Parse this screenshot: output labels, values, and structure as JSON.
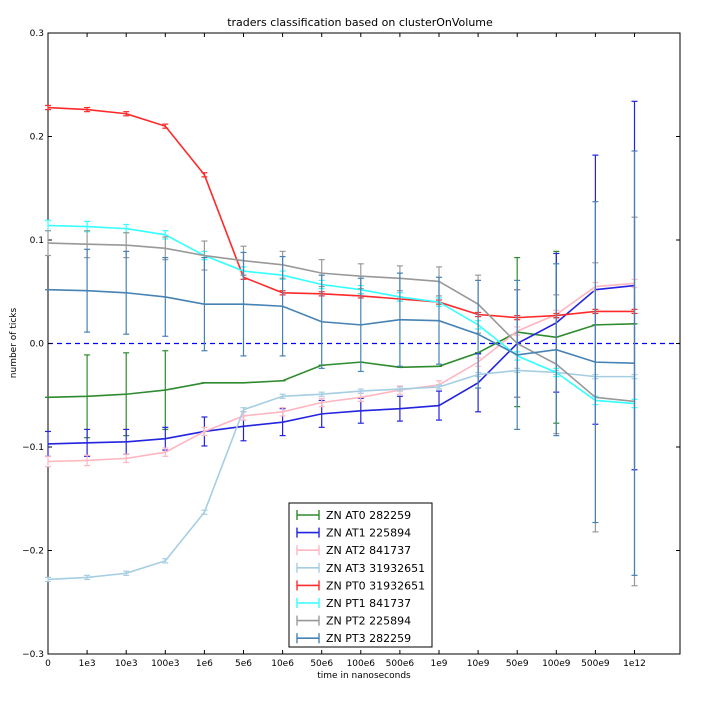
{
  "chart_data": {
    "type": "line",
    "title": "traders classification based on clusterOnVolume",
    "xlabel": "time in nanoseconds",
    "ylabel": "number of ticks",
    "ylim": [
      -0.3,
      0.3
    ],
    "y_ticks": [
      "0.3",
      "0.2",
      "0.1",
      "0.0",
      "−0.1",
      "−0.2",
      "−0.3"
    ],
    "x_tick_labels": [
      "0",
      "1e3",
      "10e3",
      "100e3",
      "1e6",
      "5e6",
      "10e6",
      "50e6",
      "100e6",
      "500e6",
      "1e9",
      "10e9",
      "50e9",
      "100e9",
      "500e9",
      "1e12"
    ],
    "grid": false,
    "reference_line": {
      "y": 0.0,
      "style": "dashed",
      "color": "#0000ff"
    },
    "legend": "lower-center",
    "series": [
      {
        "name": "ZN AT0 282259",
        "color": "#2e8b2e",
        "values": [
          -0.052,
          -0.051,
          -0.049,
          -0.045,
          -0.038,
          -0.038,
          -0.036,
          -0.021,
          -0.018,
          -0.023,
          -0.022,
          -0.009,
          0.011,
          0.006,
          0.018,
          0.019
        ],
        "errors": [
          0.0,
          0.04,
          0.04,
          0.038,
          0.0,
          0.0,
          0.0,
          0.0,
          0.0,
          0.0,
          0.0,
          0.0,
          0.072,
          0.083,
          0.0,
          0.0
        ]
      },
      {
        "name": "ZN AT1 225894",
        "color": "#2323e0",
        "values": [
          -0.097,
          -0.096,
          -0.095,
          -0.092,
          -0.085,
          -0.08,
          -0.076,
          -0.068,
          -0.065,
          -0.063,
          -0.06,
          -0.038,
          0.0,
          0.02,
          0.052,
          0.056
        ],
        "errors": [
          0.012,
          0.013,
          0.012,
          0.011,
          0.014,
          0.014,
          0.013,
          0.013,
          0.012,
          0.012,
          0.014,
          0.028,
          0.052,
          0.067,
          0.13,
          0.178
        ]
      },
      {
        "name": "ZN AT2 841737",
        "color": "#ffb6c1",
        "values": [
          -0.114,
          -0.113,
          -0.111,
          -0.105,
          -0.085,
          -0.07,
          -0.066,
          -0.057,
          -0.052,
          -0.045,
          -0.04,
          -0.018,
          0.012,
          0.028,
          0.055,
          0.058
        ],
        "errors": [
          0.005,
          0.005,
          0.004,
          0.004,
          0.004,
          0.004,
          0.004,
          0.004,
          0.004,
          0.004,
          0.004,
          0.004,
          0.004,
          0.004,
          0.004,
          0.004
        ]
      },
      {
        "name": "ZN AT3 31932651",
        "color": "#a6cee3",
        "values": [
          -0.228,
          -0.226,
          -0.222,
          -0.21,
          -0.163,
          -0.064,
          -0.051,
          -0.049,
          -0.046,
          -0.044,
          -0.042,
          -0.03,
          -0.026,
          -0.028,
          -0.032,
          -0.032
        ],
        "errors": [
          0.002,
          0.002,
          0.002,
          0.002,
          0.002,
          0.002,
          0.002,
          0.002,
          0.002,
          0.002,
          0.002,
          0.002,
          0.002,
          0.002,
          0.002,
          0.002
        ]
      },
      {
        "name": "ZN PT0 31932651",
        "color": "#ff2a2a",
        "values": [
          0.228,
          0.226,
          0.222,
          0.21,
          0.163,
          0.064,
          0.049,
          0.048,
          0.046,
          0.043,
          0.04,
          0.028,
          0.025,
          0.027,
          0.031,
          0.031
        ],
        "errors": [
          0.002,
          0.002,
          0.002,
          0.002,
          0.002,
          0.002,
          0.002,
          0.002,
          0.002,
          0.002,
          0.002,
          0.002,
          0.002,
          0.002,
          0.002,
          0.002
        ]
      },
      {
        "name": "ZN PT1 841737",
        "color": "#33ffff",
        "values": [
          0.114,
          0.113,
          0.111,
          0.105,
          0.085,
          0.07,
          0.066,
          0.057,
          0.052,
          0.045,
          0.04,
          0.018,
          -0.012,
          -0.028,
          -0.055,
          -0.058
        ],
        "errors": [
          0.005,
          0.005,
          0.004,
          0.004,
          0.004,
          0.004,
          0.004,
          0.004,
          0.004,
          0.004,
          0.004,
          0.004,
          0.004,
          0.004,
          0.004,
          0.004
        ]
      },
      {
        "name": "ZN PT2 225894",
        "color": "#999999",
        "values": [
          0.097,
          0.096,
          0.095,
          0.092,
          0.085,
          0.08,
          0.076,
          0.068,
          0.065,
          0.063,
          0.06,
          0.038,
          0.0,
          -0.02,
          -0.052,
          -0.056
        ],
        "errors": [
          0.012,
          0.013,
          0.012,
          0.011,
          0.014,
          0.014,
          0.013,
          0.013,
          0.012,
          0.012,
          0.014,
          0.028,
          0.052,
          0.067,
          0.13,
          0.178
        ]
      },
      {
        "name": "ZN PT3 282259",
        "color": "#4682b4",
        "values": [
          0.052,
          0.051,
          0.049,
          0.045,
          0.038,
          0.038,
          0.036,
          0.021,
          0.018,
          0.023,
          0.022,
          0.009,
          -0.011,
          -0.006,
          -0.018,
          -0.019
        ],
        "errors": [
          0.0,
          0.04,
          0.04,
          0.038,
          0.045,
          0.05,
          0.048,
          0.045,
          0.045,
          0.045,
          0.042,
          0.052,
          0.072,
          0.083,
          0.155,
          0.205
        ]
      }
    ]
  }
}
